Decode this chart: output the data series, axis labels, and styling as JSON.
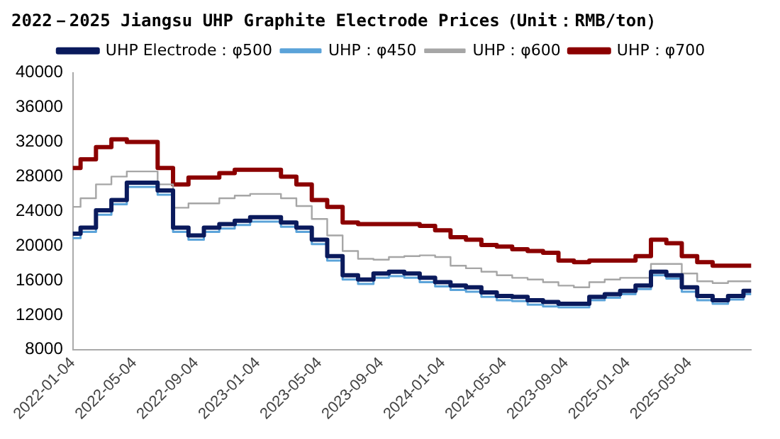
{
  "chart_data": {
    "type": "step",
    "title": "2022－2025 Jiangsu UHP Graphite Electrode Prices（Unit：RMB/ton）",
    "categories": [
      "2022-01-04",
      null,
      null,
      null,
      "2022-05-04",
      null,
      null,
      null,
      "2022-09-04",
      null,
      null,
      null,
      "2023-01-04",
      null,
      null,
      null,
      "2023-05-04",
      null,
      null,
      null,
      "2023-09-04",
      null,
      null,
      null,
      "2024-01-04",
      null,
      null,
      null,
      "2024-05-04",
      null,
      null,
      null,
      "2023-09-04",
      null,
      null,
      null,
      "2025-01-04",
      null,
      null,
      null,
      "2025-05-04",
      null,
      null,
      null,
      null
    ],
    "series": [
      {
        "name": "UHP Electrode：φ500",
        "color": "#0a1a5c",
        "values": [
          21400,
          22100,
          24100,
          25300,
          27300,
          27300,
          26400,
          22100,
          21200,
          22100,
          22500,
          22900,
          23300,
          23300,
          22700,
          22100,
          20700,
          18800,
          16600,
          16100,
          16800,
          17000,
          16800,
          16300,
          15800,
          15400,
          15200,
          14600,
          14200,
          14100,
          13700,
          13500,
          13300,
          13300,
          14100,
          14400,
          14800,
          15400,
          17000,
          16600,
          15200,
          14200,
          13700,
          14200,
          14800
        ]
      },
      {
        "name": "UHP：φ450",
        "color": "#5ba3d9",
        "values": [
          20900,
          21600,
          23600,
          24800,
          26800,
          26800,
          25900,
          21600,
          20700,
          21600,
          22000,
          22400,
          22800,
          22800,
          22200,
          21600,
          20200,
          18300,
          16100,
          15600,
          16300,
          16500,
          16300,
          15800,
          15300,
          14900,
          14700,
          14100,
          13700,
          13600,
          13200,
          13000,
          12900,
          12900,
          13700,
          14000,
          14400,
          15000,
          16600,
          16200,
          14700,
          13700,
          13300,
          13800,
          14400
        ]
      },
      {
        "name": "UHP：φ600",
        "color": "#a6a6a6",
        "values": [
          24500,
          25500,
          27100,
          28000,
          28600,
          28600,
          27100,
          24400,
          24900,
          24900,
          25500,
          25800,
          26000,
          26000,
          25500,
          24600,
          23100,
          21200,
          19400,
          18500,
          18400,
          18700,
          18800,
          18900,
          18700,
          17700,
          17400,
          17000,
          16600,
          16300,
          16100,
          15800,
          15400,
          15200,
          15800,
          16100,
          16300,
          16300,
          17900,
          17900,
          16800,
          15900,
          15700,
          15900,
          15900
        ]
      },
      {
        "name": "UHP：φ700",
        "color": "#8b0000",
        "values": [
          29000,
          30000,
          31400,
          32300,
          32000,
          32000,
          29000,
          27100,
          27900,
          27900,
          28400,
          28800,
          28800,
          28800,
          28000,
          27100,
          25300,
          24500,
          22700,
          22500,
          22500,
          22500,
          22500,
          22300,
          21800,
          21000,
          20700,
          20100,
          19900,
          19600,
          19400,
          19200,
          18300,
          18100,
          18300,
          18300,
          18300,
          18800,
          20700,
          20300,
          18800,
          18100,
          17700,
          17700,
          17700
        ]
      }
    ],
    "ylim": [
      8000,
      40000
    ],
    "yticks": [
      8000,
      12000,
      16000,
      20000,
      24000,
      28000,
      32000,
      36000,
      40000
    ],
    "grid": false,
    "legend": "top"
  }
}
